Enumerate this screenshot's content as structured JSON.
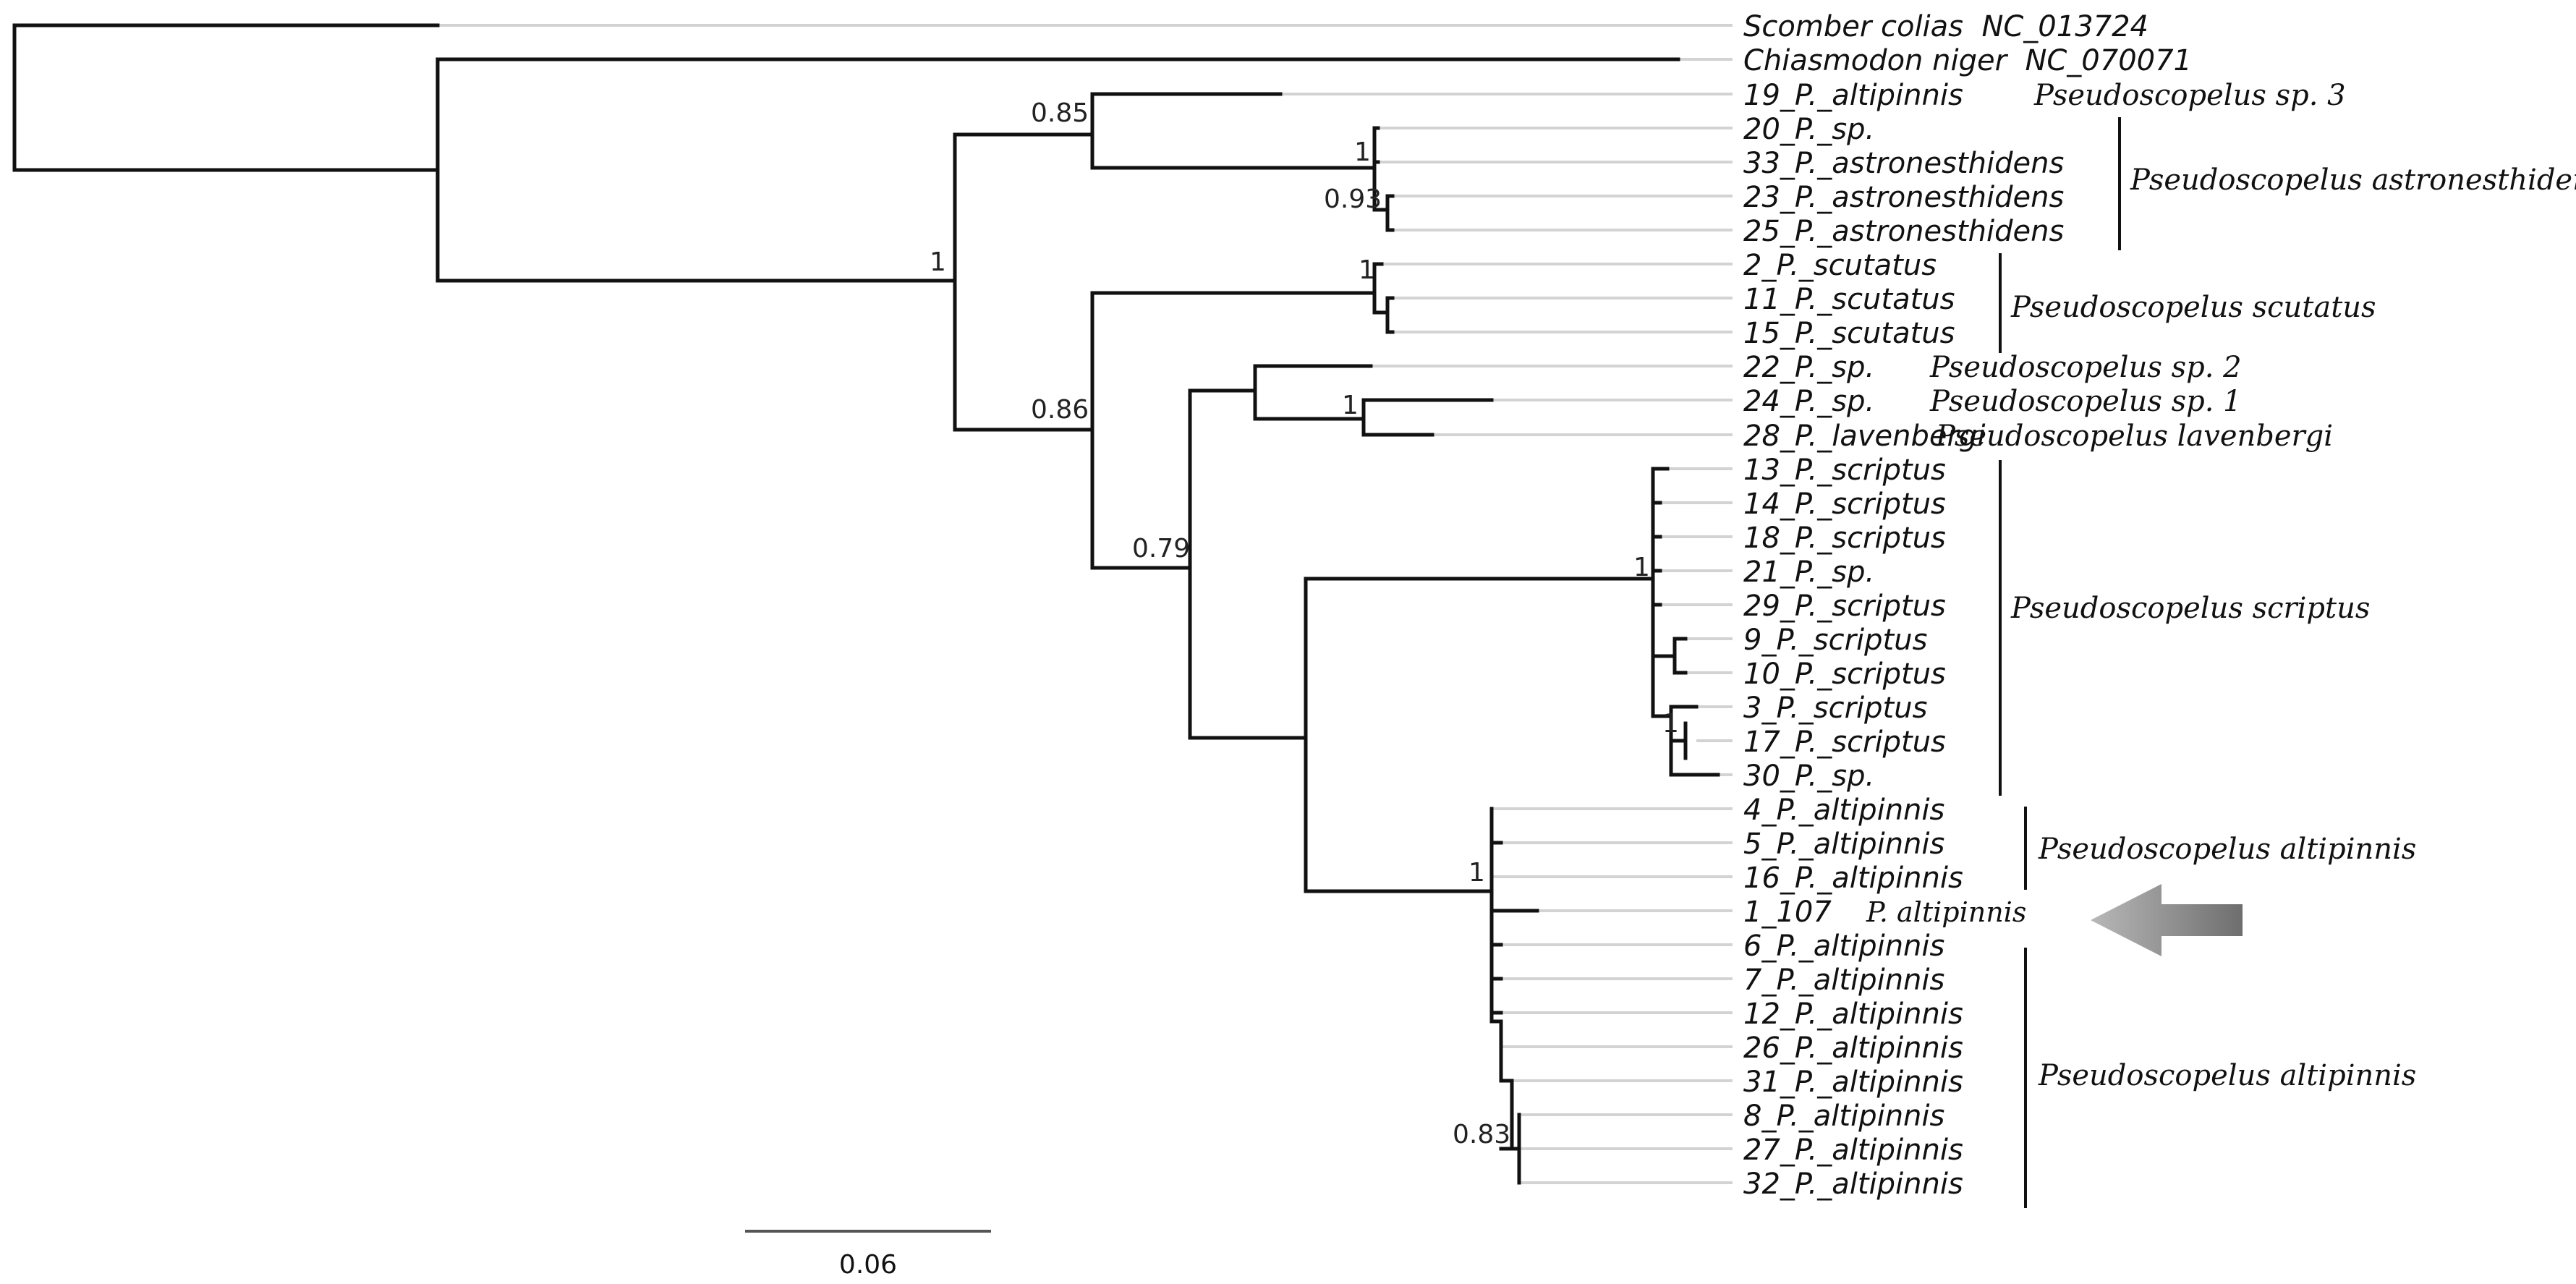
{
  "tree": {
    "tips": [
      "Scomber colias  NC_013724",
      "Chiasmodon niger  NC_070071",
      "19_P._altipinnis",
      "20_P._sp.",
      "33_P._astronesthidens",
      "23_P._astronesthidens",
      "25_P._astronesthidens",
      "2_P._scutatus",
      "11_P._scutatus",
      "15_P._scutatus",
      "22_P._sp.",
      "24_P._sp.",
      "28_P._lavenbergi",
      "13_P._scriptus",
      "14_P._scriptus",
      "18_P._scriptus",
      "21_P._sp.",
      "29_P._scriptus",
      "9_P._scriptus",
      "10_P._scriptus",
      "3_P._scriptus",
      "17_P._scriptus",
      "30_P._sp.",
      "4_P._altipinnis",
      "5_P._altipinnis",
      "16_P._altipinnis",
      "1_107",
      "6_P._altipinnis",
      "7_P._altipinnis",
      "12_P._altipinnis",
      "26_P._altipinnis",
      "31_P._altipinnis",
      "8_P._altipinnis",
      "27_P._altipinnis",
      "32_P._altipinnis"
    ],
    "query_tip_species": "P. altipinnis",
    "support_values": [
      "0.85",
      "1",
      "0.93",
      "1",
      "1",
      "0.86",
      "1",
      "0.79",
      "1",
      "1",
      "1",
      "0.83"
    ],
    "clade_labels": [
      "Pseudoscopelus sp. 3",
      "Pseudoscopelus astronesthidens",
      "Pseudoscopelus scutatus",
      "Pseudoscopelus sp. 2",
      "Pseudoscopelus sp. 1",
      "Pseudoscopelus lavenbergi",
      "Pseudoscopelus scriptus",
      "Pseudoscopelus altipinnis",
      "Pseudoscopelus altipinnis"
    ],
    "scale": {
      "label": "0.06",
      "substitutions_per_site": 0.06
    }
  },
  "colors": {
    "branch": "#111111",
    "guide": "#d3d3d3",
    "arrow_light": "#b5b5b5",
    "arrow_dark": "#6e6e6e"
  },
  "icons": {
    "pointer": "arrow-left-icon"
  }
}
